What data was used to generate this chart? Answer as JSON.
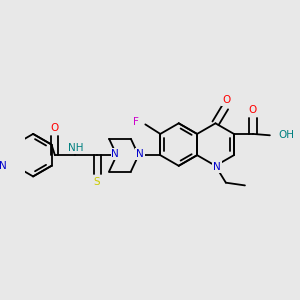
{
  "bg_color": "#e8e8e8",
  "fig_size": [
    3.0,
    3.0
  ],
  "dpi": 100,
  "colors": {
    "N": "#0000cc",
    "O": "#ff0000",
    "F": "#cc00cc",
    "S": "#cccc00",
    "NH": "#008080",
    "OH": "#008080",
    "C": "#000000",
    "bond": "#000000"
  },
  "lw": 1.3,
  "fs": 7.5
}
